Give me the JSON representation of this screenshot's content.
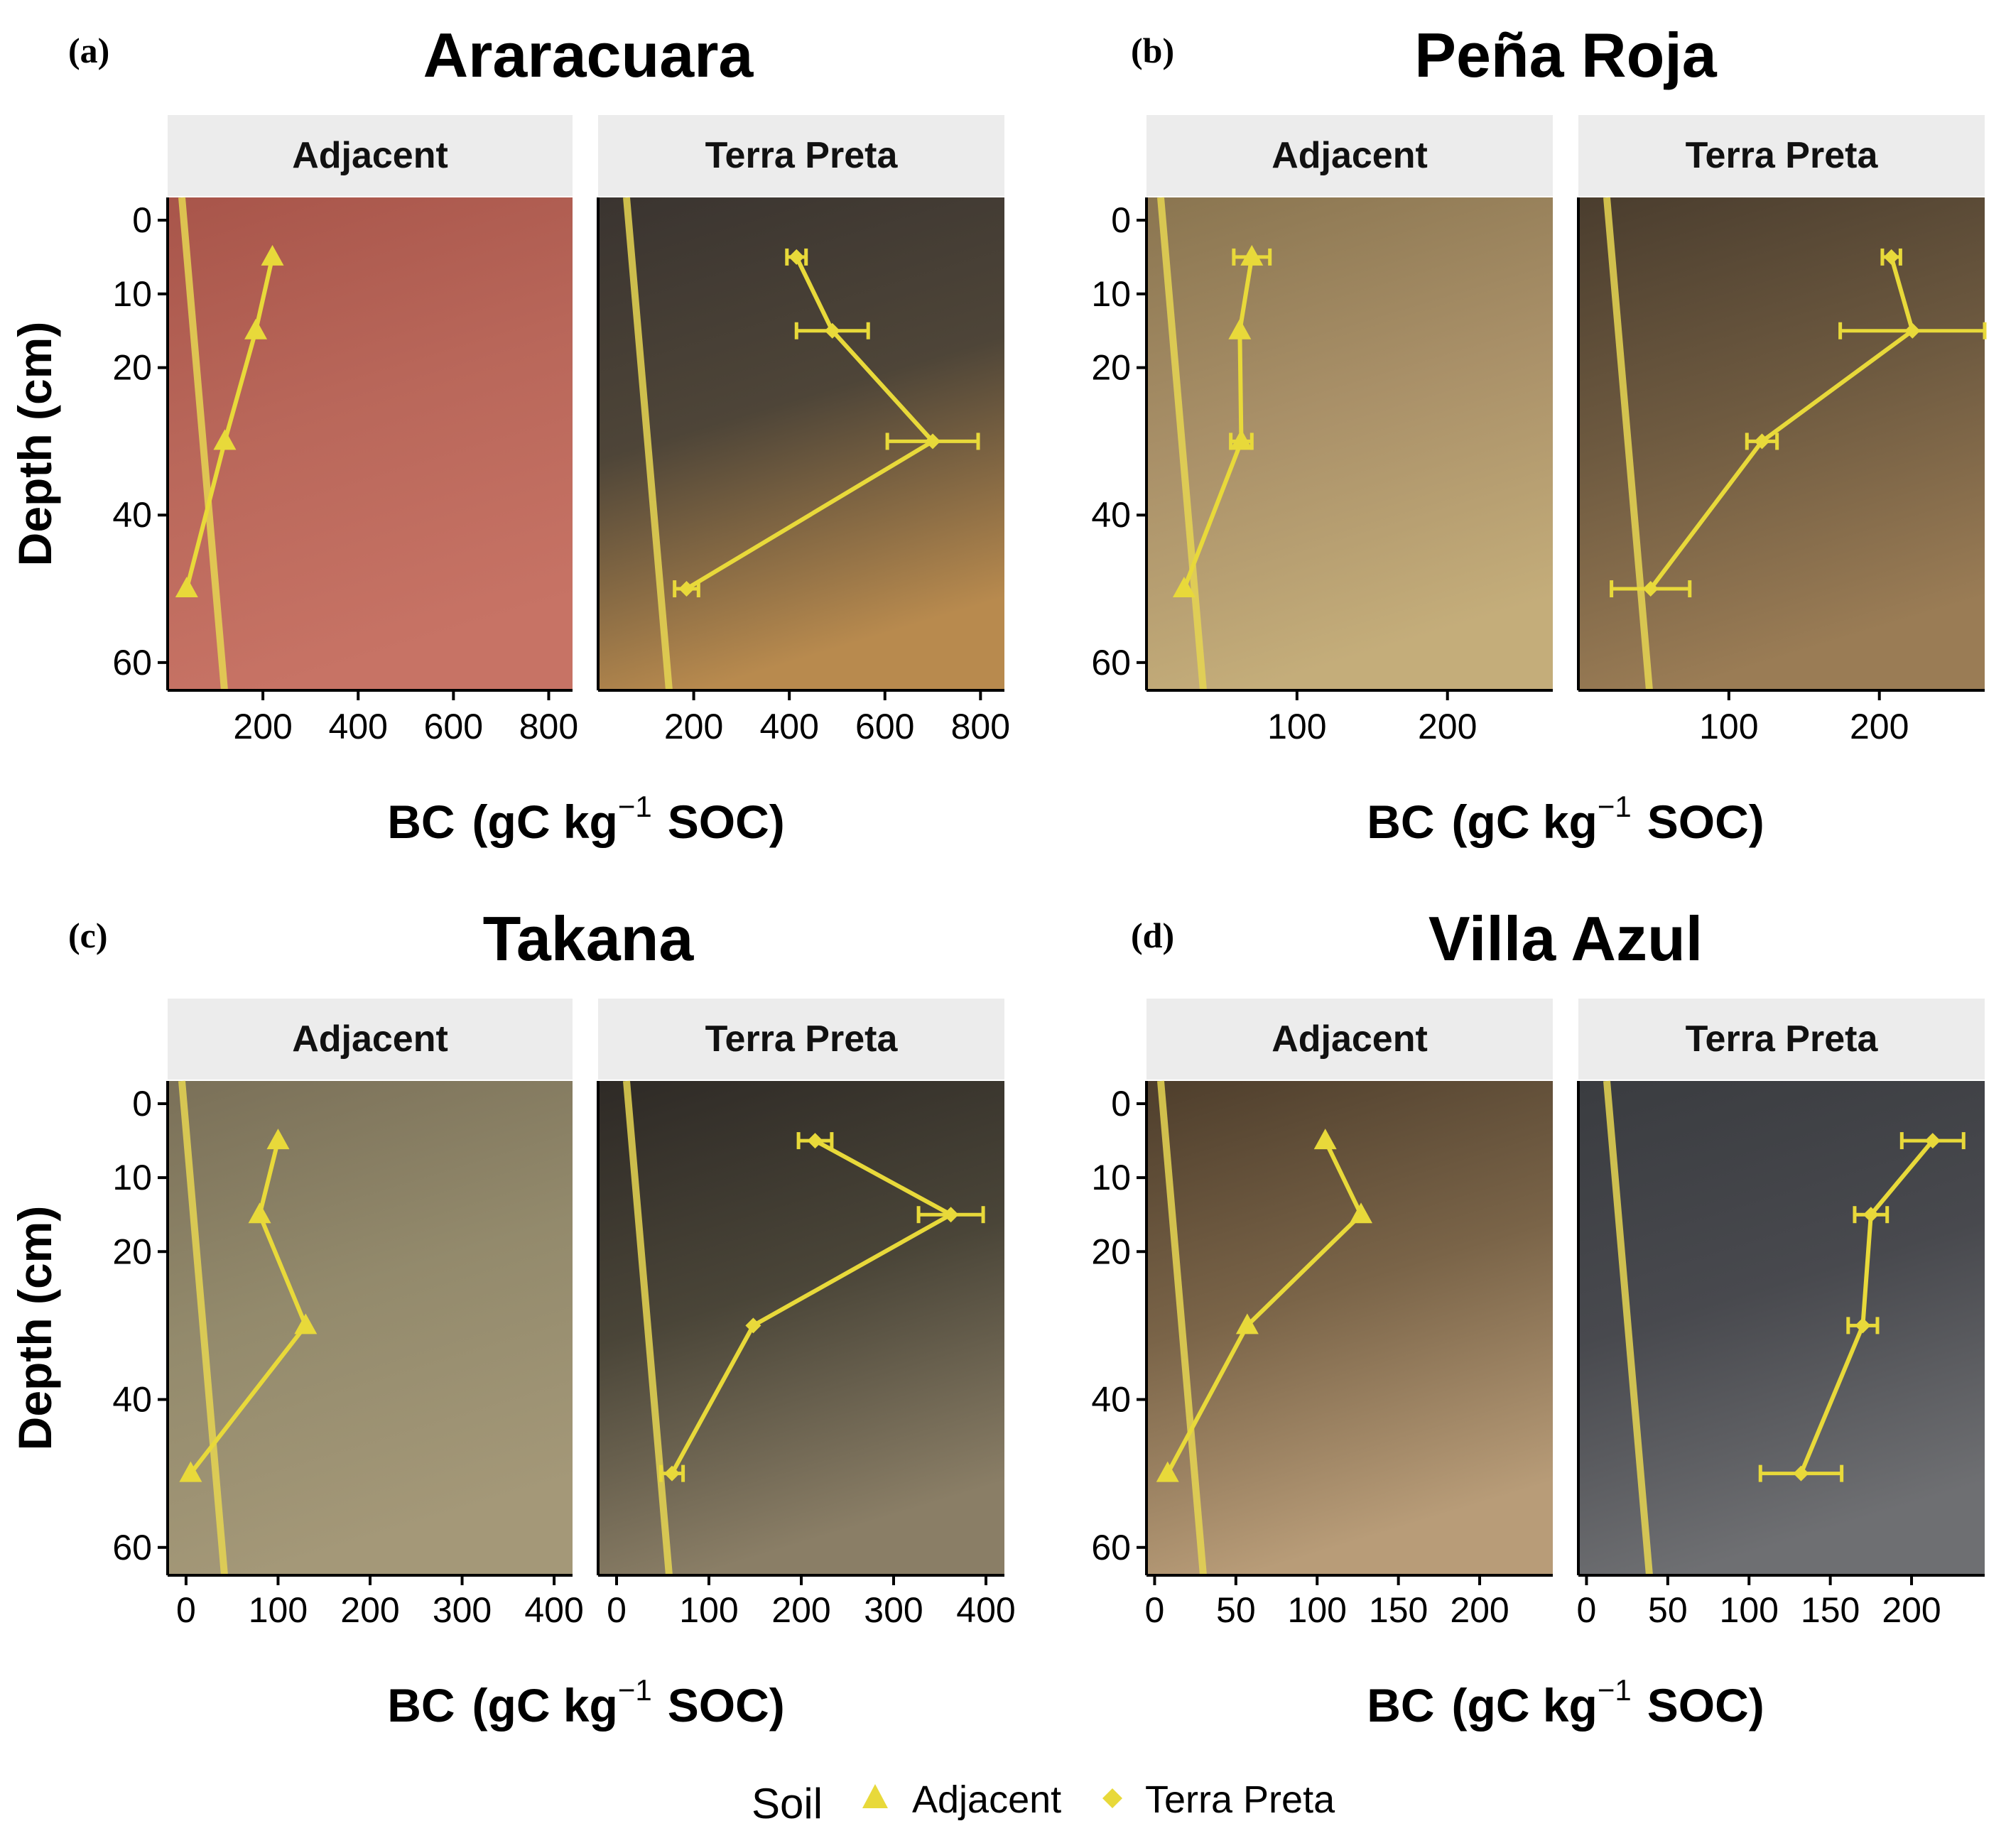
{
  "x_axis_title": {
    "main": "BC",
    "unit_pre": "gC kg",
    "unit_sup": "−1",
    "unit_post": "SOC"
  },
  "y_axis_title": "Depth (cm)",
  "legend": {
    "title": "Soil",
    "items": [
      {
        "label": "Adjacent",
        "shape": "triangle"
      },
      {
        "label": "Terra Preta",
        "shape": "diamond"
      }
    ]
  },
  "colors": {
    "series": "#e8d93a",
    "strip_bg": "#ececec"
  },
  "panels": [
    {
      "letter": "(a)",
      "site": "Araracuara",
      "photo_colors": {
        "adjacent": [
          "#a8554a",
          "#b9675a",
          "#c77365"
        ],
        "terra_preta": [
          "#3a3430",
          "#4e4538",
          "#b88a4e"
        ]
      }
    },
    {
      "letter": "(b)",
      "site": "Peña Roja",
      "photo_colors": {
        "adjacent": [
          "#8a7550",
          "#a99068",
          "#c4ad7a"
        ],
        "terra_preta": [
          "#4a3d2e",
          "#6e5a40",
          "#9a7c55"
        ]
      }
    },
    {
      "letter": "(c)",
      "site": "Takana",
      "photo_colors": {
        "adjacent": [
          "#7a7058",
          "#938a6c",
          "#a49878"
        ],
        "terra_preta": [
          "#2e2a26",
          "#4a4538",
          "#8a7e66"
        ]
      }
    },
    {
      "letter": "(d)",
      "site": "Villa Azul",
      "photo_colors": {
        "adjacent": [
          "#4e3e2c",
          "#7a6448",
          "#b89c78"
        ],
        "terra_preta": [
          "#3a3c40",
          "#48494e",
          "#6e6f72"
        ]
      }
    }
  ],
  "chart_data": [
    {
      "type": "line",
      "site": "Araracuara",
      "facet": "Adjacent",
      "ylabel": "Depth (cm)",
      "y_reversed": true,
      "ylim": [
        0,
        63
      ],
      "xlim": [
        0,
        850
      ],
      "xticks": [
        200,
        400,
        600,
        800
      ],
      "yticks": [
        0,
        10,
        20,
        40,
        60
      ],
      "series": [
        {
          "name": "Adjacent",
          "marker": "triangle",
          "points": [
            {
              "x": 220,
              "y": 5
            },
            {
              "x": 185,
              "y": 15
            },
            {
              "x": 120,
              "y": 30
            },
            {
              "x": 40,
              "y": 50
            }
          ]
        }
      ]
    },
    {
      "type": "line",
      "site": "Araracuara",
      "facet": "Terra Preta",
      "ylabel": "Depth (cm)",
      "y_reversed": true,
      "ylim": [
        0,
        63
      ],
      "xlim": [
        0,
        850
      ],
      "xticks": [
        200,
        400,
        600,
        800
      ],
      "yticks": [
        0,
        10,
        20,
        40,
        60
      ],
      "series": [
        {
          "name": "Terra Preta",
          "marker": "diamond",
          "points": [
            {
              "x": 415,
              "y": 5,
              "err": 20
            },
            {
              "x": 490,
              "y": 15,
              "err": 75
            },
            {
              "x": 700,
              "y": 30,
              "err": 95
            },
            {
              "x": 185,
              "y": 50,
              "err": 25
            }
          ]
        }
      ]
    },
    {
      "type": "line",
      "site": "Peña Roja",
      "facet": "Adjacent",
      "ylabel": "Depth (cm)",
      "y_reversed": true,
      "ylim": [
        0,
        63
      ],
      "xlim": [
        0,
        270
      ],
      "xticks": [
        100,
        200
      ],
      "yticks": [
        0,
        10,
        20,
        40,
        60
      ],
      "series": [
        {
          "name": "Adjacent",
          "marker": "triangle",
          "points": [
            {
              "x": 70,
              "y": 5,
              "err": 12
            },
            {
              "x": 62,
              "y": 15
            },
            {
              "x": 63,
              "y": 30,
              "err": 7
            },
            {
              "x": 25,
              "y": 50
            }
          ]
        }
      ]
    },
    {
      "type": "line",
      "site": "Peña Roja",
      "facet": "Terra Preta",
      "ylabel": "Depth (cm)",
      "y_reversed": true,
      "ylim": [
        0,
        63
      ],
      "xlim": [
        0,
        270
      ],
      "xticks": [
        100,
        200
      ],
      "yticks": [
        0,
        10,
        20,
        40,
        60
      ],
      "series": [
        {
          "name": "Terra Preta",
          "marker": "diamond",
          "points": [
            {
              "x": 208,
              "y": 5,
              "err": 6
            },
            {
              "x": 222,
              "y": 15,
              "err": 48
            },
            {
              "x": 122,
              "y": 30,
              "err": 10
            },
            {
              "x": 48,
              "y": 50,
              "err": 26
            }
          ]
        }
      ]
    },
    {
      "type": "line",
      "site": "Takana",
      "facet": "Adjacent",
      "ylabel": "Depth (cm)",
      "y_reversed": true,
      "ylim": [
        0,
        63
      ],
      "xlim": [
        -20,
        420
      ],
      "xticks": [
        0,
        100,
        200,
        300,
        400
      ],
      "yticks": [
        0,
        10,
        20,
        40,
        60
      ],
      "series": [
        {
          "name": "Adjacent",
          "marker": "triangle",
          "points": [
            {
              "x": 100,
              "y": 5
            },
            {
              "x": 80,
              "y": 15
            },
            {
              "x": 130,
              "y": 30
            },
            {
              "x": 5,
              "y": 50
            }
          ]
        }
      ]
    },
    {
      "type": "line",
      "site": "Takana",
      "facet": "Terra Preta",
      "ylabel": "Depth (cm)",
      "y_reversed": true,
      "ylim": [
        0,
        63
      ],
      "xlim": [
        -20,
        420
      ],
      "xticks": [
        0,
        100,
        200,
        300,
        400
      ],
      "yticks": [
        0,
        10,
        20,
        40,
        60
      ],
      "series": [
        {
          "name": "Terra Preta",
          "marker": "diamond",
          "points": [
            {
              "x": 215,
              "y": 5,
              "err": 18
            },
            {
              "x": 362,
              "y": 15,
              "err": 35
            },
            {
              "x": 148,
              "y": 30
            },
            {
              "x": 60,
              "y": 50,
              "err": 12
            }
          ]
        }
      ]
    },
    {
      "type": "line",
      "site": "Villa Azul",
      "facet": "Adjacent",
      "ylabel": "Depth (cm)",
      "y_reversed": true,
      "ylim": [
        0,
        63
      ],
      "xlim": [
        -5,
        245
      ],
      "xticks": [
        0,
        50,
        100,
        150,
        200
      ],
      "yticks": [
        0,
        10,
        20,
        40,
        60
      ],
      "series": [
        {
          "name": "Adjacent",
          "marker": "triangle",
          "points": [
            {
              "x": 105,
              "y": 5
            },
            {
              "x": 127,
              "y": 15
            },
            {
              "x": 57,
              "y": 30
            },
            {
              "x": 8,
              "y": 50
            }
          ]
        }
      ]
    },
    {
      "type": "line",
      "site": "Villa Azul",
      "facet": "Terra Preta",
      "ylabel": "Depth (cm)",
      "y_reversed": true,
      "ylim": [
        0,
        63
      ],
      "xlim": [
        -5,
        245
      ],
      "xticks": [
        0,
        50,
        100,
        150,
        200
      ],
      "yticks": [
        0,
        10,
        20,
        40,
        60
      ],
      "series": [
        {
          "name": "Terra Preta",
          "marker": "diamond",
          "points": [
            {
              "x": 213,
              "y": 5,
              "err": 19
            },
            {
              "x": 175,
              "y": 15,
              "err": 10
            },
            {
              "x": 170,
              "y": 30,
              "err": 9
            },
            {
              "x": 132,
              "y": 50,
              "err": 25
            }
          ]
        }
      ]
    }
  ]
}
